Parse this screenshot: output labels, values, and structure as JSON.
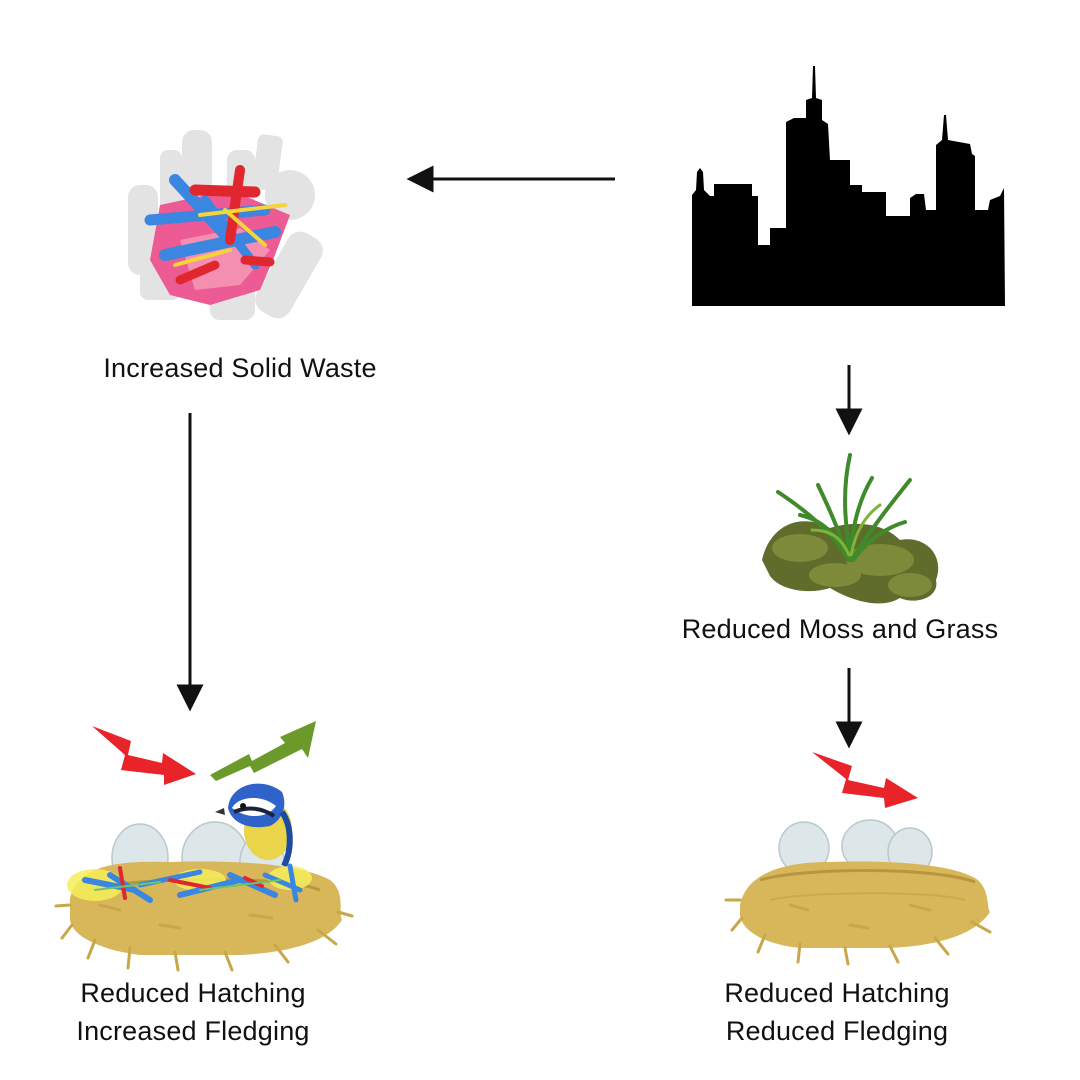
{
  "labels": {
    "solid_waste": "Increased Solid Waste",
    "moss_grass": "Reduced Moss and Grass",
    "left_outcome_line1": "Reduced Hatching",
    "left_outcome_line2": "Increased Fledging",
    "right_outcome_line1": "Reduced Hatching",
    "right_outcome_line2": "Reduced Fledging"
  },
  "icons": {
    "city": "city-skyline-icon",
    "waste": "plastic-waste-pile-icon",
    "moss": "moss-and-grass-icon",
    "nest_with_waste": "nest-with-plastic-and-bird-icon",
    "nest_plain": "nest-with-eggs-icon",
    "trend_down": "red-zigzag-down-arrow-icon",
    "trend_up": "green-zigzag-up-arrow-icon"
  },
  "colors": {
    "decrease": "#e8232a",
    "increase": "#6b9a2a",
    "connector": "#111111",
    "nest": "#d7b85a",
    "plastic_blue": "#3a86e0",
    "plastic_pink": "#ec5b93"
  }
}
